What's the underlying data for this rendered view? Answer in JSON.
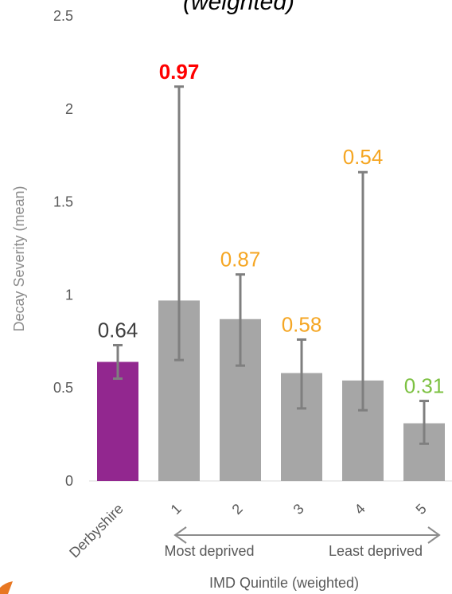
{
  "chart_data": {
    "type": "bar",
    "title": "(weighted)",
    "ylabel": "Decay Severity (mean)",
    "xlabel": "IMD Quintile (weighted)",
    "ylim": [
      0,
      2.5
    ],
    "yticks": [
      "0",
      "0.5",
      "1",
      "1.5",
      "2",
      "2.5"
    ],
    "categories": [
      "Derbyshire",
      "1",
      "2",
      "3",
      "4",
      "5"
    ],
    "values": [
      0.64,
      0.97,
      0.87,
      0.58,
      0.54,
      0.31
    ],
    "data_labels": [
      "0.64",
      "0.97",
      "0.87",
      "0.58",
      "0.54",
      "0.31"
    ],
    "error_low": [
      0.55,
      0.65,
      0.62,
      0.39,
      0.38,
      0.2
    ],
    "error_high": [
      0.73,
      2.12,
      1.11,
      0.76,
      1.66,
      0.43
    ],
    "bar_colors": [
      "#92278f",
      "#a6a6a6",
      "#a6a6a6",
      "#a6a6a6",
      "#a6a6a6",
      "#a6a6a6"
    ],
    "label_colors": [
      "#404040",
      "#ff0000",
      "#f5a623",
      "#f5a623",
      "#f5a623",
      "#7dc142"
    ],
    "label_bold": [
      false,
      true,
      false,
      false,
      false,
      false
    ],
    "error_color": "#7f7f7f",
    "arrow_left_label": "Most  deprived",
    "arrow_right_label": "Least deprived",
    "grid": false
  }
}
